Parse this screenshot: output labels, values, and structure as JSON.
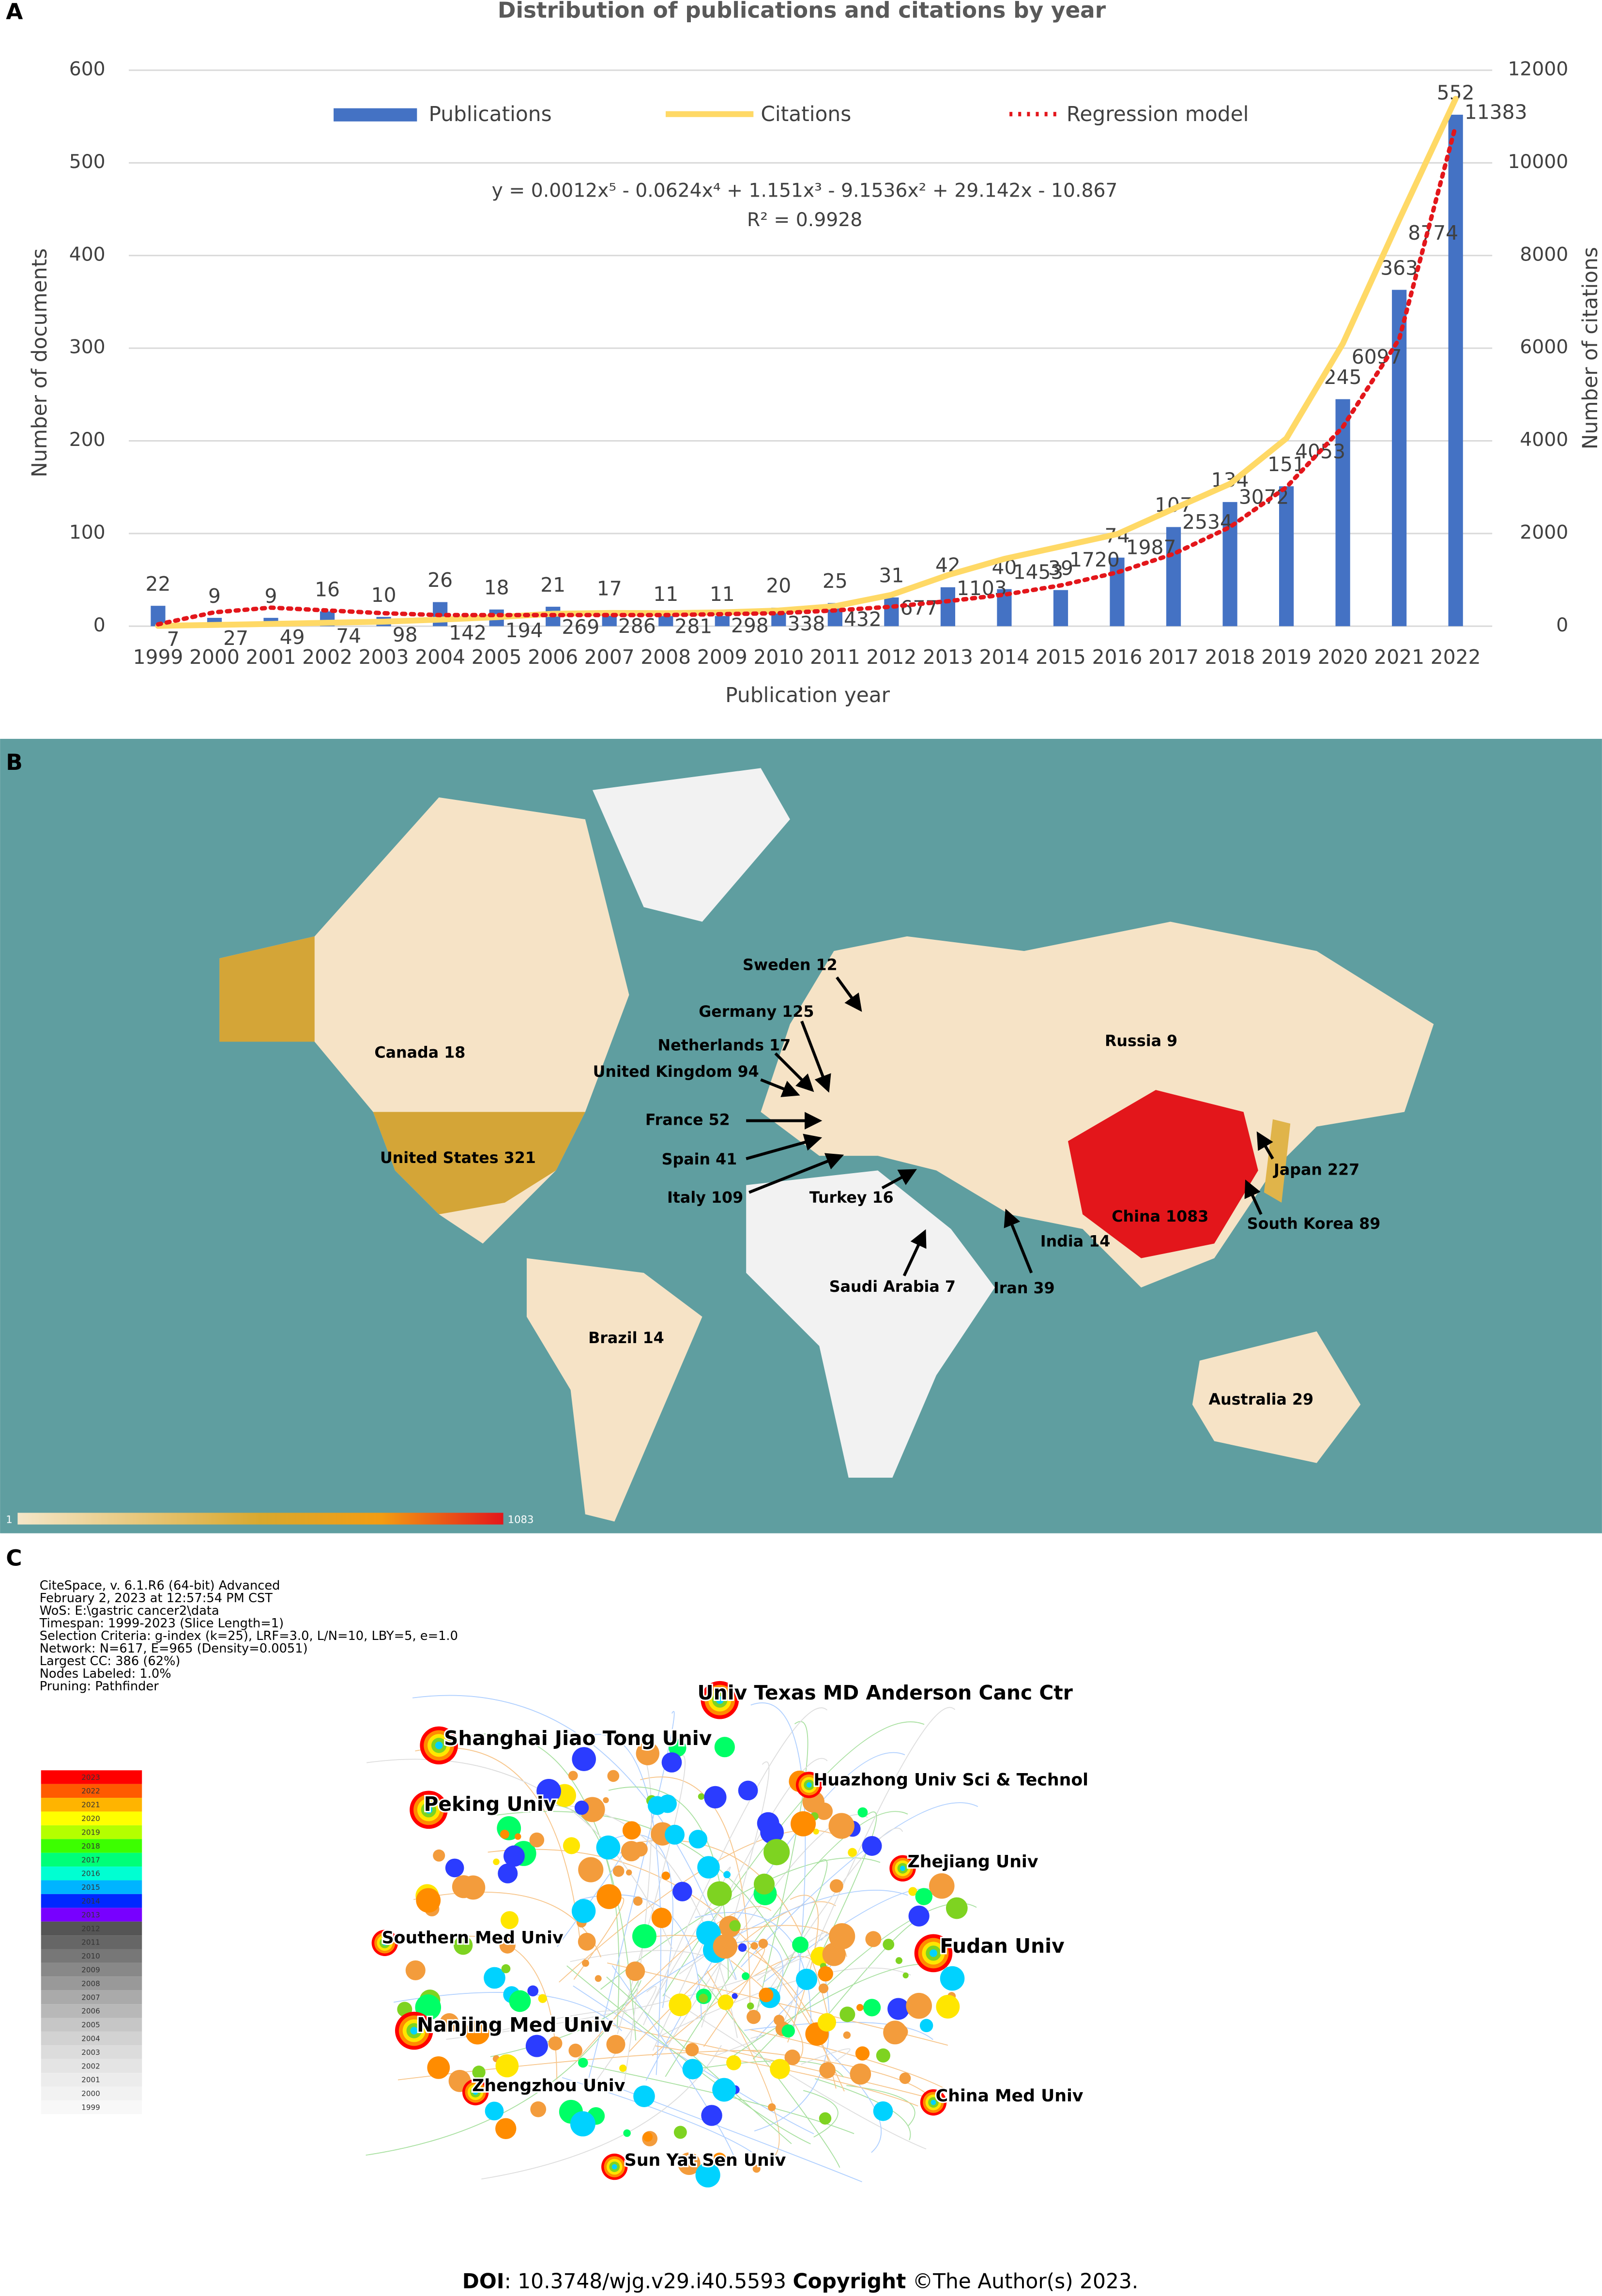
{
  "chart_data": {
    "type": "bar",
    "label": "A",
    "title": "Distribution of publications and citations by year",
    "categories": [
      "1999",
      "2000",
      "2001",
      "2002",
      "2003",
      "2004",
      "2005",
      "2006",
      "2007",
      "2008",
      "2009",
      "2010",
      "2011",
      "2012",
      "2013",
      "2014",
      "2015",
      "2016",
      "2017",
      "2018",
      "2019",
      "2020",
      "2021",
      "2022"
    ],
    "series": [
      {
        "name": "Publications",
        "color": "#4472c4",
        "kind": "bar",
        "values": [
          22,
          9,
          9,
          16,
          10,
          26,
          18,
          21,
          17,
          11,
          11,
          20,
          25,
          31,
          42,
          40,
          39,
          74,
          107,
          134,
          151,
          245,
          363,
          552
        ]
      },
      {
        "name": "Citations",
        "color": "#ffd966",
        "kind": "line",
        "axis": "y2",
        "values": [
          7,
          27,
          49,
          74,
          98,
          142,
          194,
          269,
          286,
          281,
          298,
          338,
          432,
          677,
          1103,
          1453,
          1720,
          1987,
          2534,
          3072,
          4053,
          6097,
          8774,
          11383
        ]
      },
      {
        "name": "Regression model",
        "color": "#e3161b",
        "kind": "dotted",
        "values": [
          2,
          15,
          20,
          17,
          14,
          12,
          12,
          12,
          12,
          12,
          13,
          14,
          17,
          21,
          27,
          34,
          44,
          58,
          78,
          107,
          150,
          215,
          310,
          540
        ]
      }
    ],
    "equation": "y = 0.0012x⁵ - 0.0624x⁴ + 1.151x³ - 9.1536x² + 29.142x - 10.867",
    "r_squared": "R² = 0.9928",
    "x_label": "Publication year",
    "y_label": "Number of documents",
    "y2_label": "Number of citations",
    "ylim": [
      0,
      600
    ],
    "yticks": [
      0,
      100,
      200,
      300,
      400,
      500,
      600
    ],
    "y2lim": [
      0,
      12000
    ],
    "y2ticks": [
      0,
      2000,
      4000,
      6000,
      8000,
      10000,
      12000
    ]
  },
  "map": {
    "label": "B",
    "countries": [
      {
        "name": "Canada",
        "value": 18
      },
      {
        "name": "Russia",
        "value": 9
      },
      {
        "name": "United States",
        "value": 321
      },
      {
        "name": "Sweden",
        "value": 12
      },
      {
        "name": "Germany",
        "value": 125
      },
      {
        "name": "Netherlands",
        "value": 17
      },
      {
        "name": "United Kingdom",
        "value": 94
      },
      {
        "name": "France",
        "value": 52
      },
      {
        "name": "Spain",
        "value": 41
      },
      {
        "name": "Italy",
        "value": 109
      },
      {
        "name": "Turkey",
        "value": 16
      },
      {
        "name": "China",
        "value": 1083
      },
      {
        "name": "Japan",
        "value": 227
      },
      {
        "name": "South Korea",
        "value": 89
      },
      {
        "name": "India",
        "value": 14
      },
      {
        "name": "Saudi Arabia",
        "value": 7
      },
      {
        "name": "Iran",
        "value": 39
      },
      {
        "name": "Brazil",
        "value": 14
      },
      {
        "name": "Australia",
        "value": 29
      }
    ],
    "scale_min": "1",
    "scale_max": "1083"
  },
  "network": {
    "label": "C",
    "info": [
      "CiteSpace, v. 6.1.R6 (64-bit) Advanced",
      "February 2, 2023 at 12:57:54 PM CST",
      "WoS: E:\\gastric cancer2\\data",
      "Timespan: 1999-2023 (Slice Length=1)",
      "Selection Criteria: g-index (k=25), LRF=3.0, L/N=10, LBY=5, e=1.0",
      "Network: N=617, E=965 (Density=0.0051)",
      "Largest CC: 386 (62%)",
      "Nodes Labeled: 1.0%",
      "Pruning: Pathfinder"
    ],
    "legend_years": [
      "2023",
      "2022",
      "2021",
      "2020",
      "2019",
      "2018",
      "2017",
      "2016",
      "2015",
      "2014",
      "2013",
      "2012",
      "2011",
      "2010",
      "2009",
      "2008",
      "2007",
      "2006",
      "2005",
      "2004",
      "2003",
      "2002",
      "2001",
      "2000",
      "1999"
    ],
    "nodes": [
      "Univ Texas MD Anderson Canc Ctr",
      "Shanghai Jiao Tong Univ",
      "Huazhong Univ Sci & Technol",
      "Peking Univ",
      "Zhejiang Univ",
      "Southern Med Univ",
      "Fudan Univ",
      "Nanjing Med Univ",
      "Zhengzhou Univ",
      "China Med Univ",
      "Sun Yat Sen Univ"
    ]
  },
  "footer": {
    "doi_label": "DOI",
    "doi": ": 10.3748/wjg.v29.i40.5593 ",
    "copyright_label": "Copyright",
    "copyright": " ©The Author(s) 2023."
  }
}
